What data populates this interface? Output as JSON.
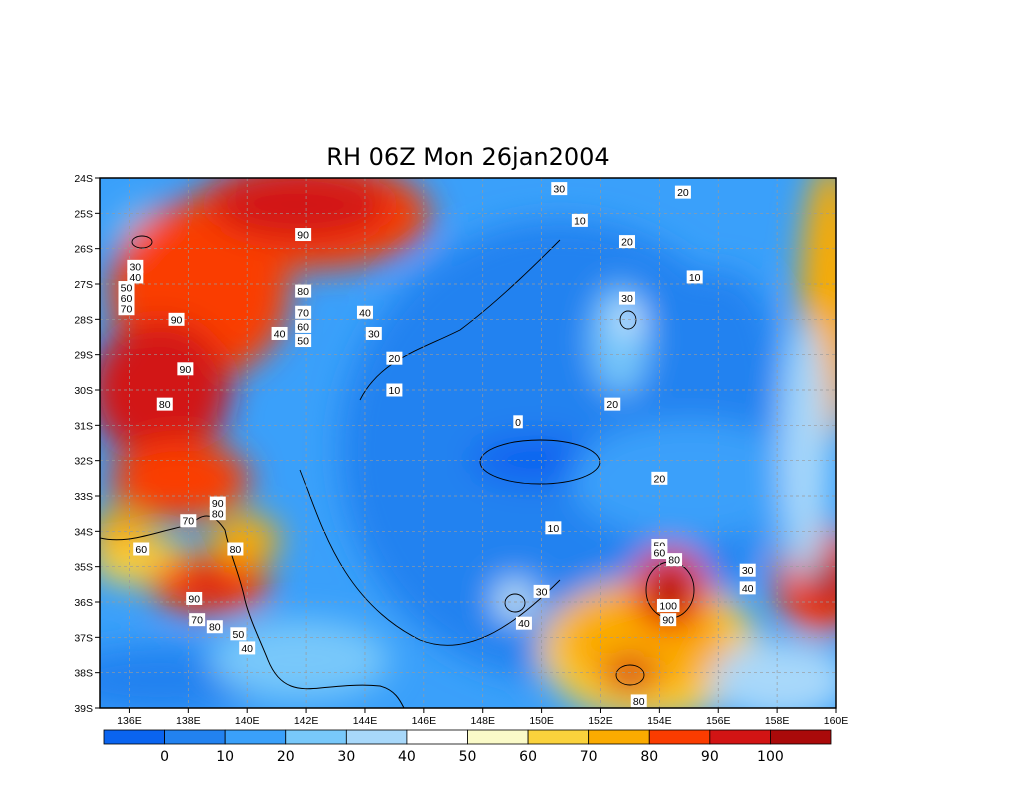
{
  "chart_data": {
    "type": "heatmap",
    "title": "RH 06Z Mon 26jan2004",
    "variable": "RH",
    "x_ticks": [
      "136E",
      "138E",
      "140E",
      "142E",
      "144E",
      "146E",
      "148E",
      "150E",
      "152E",
      "154E",
      "156E",
      "158E",
      "160E"
    ],
    "y_ticks": [
      "24S",
      "25S",
      "26S",
      "27S",
      "28S",
      "29S",
      "30S",
      "31S",
      "32S",
      "33S",
      "34S",
      "35S",
      "36S",
      "37S",
      "38S",
      "39S"
    ],
    "xlim": [
      135,
      160
    ],
    "ylim": [
      -39,
      -24
    ],
    "grid": true,
    "colorbar": {
      "labels": [
        "0",
        "10",
        "20",
        "30",
        "40",
        "50",
        "60",
        "70",
        "80",
        "90",
        "100"
      ],
      "colors": [
        "#0a64f0",
        "#2282f0",
        "#3aa0fa",
        "#78c8fa",
        "#a8d8fa",
        "#ffffff",
        "#fafac8",
        "#fad23c",
        "#fbab00",
        "#fa3c00",
        "#d21414",
        "#aa0a0a"
      ]
    },
    "contour_labels": [
      {
        "text": "30",
        "lon": 150.6,
        "lat": -24.3
      },
      {
        "text": "20",
        "lon": 154.8,
        "lat": -24.4
      },
      {
        "text": "10",
        "lon": 151.3,
        "lat": -25.2
      },
      {
        "text": "20",
        "lon": 152.9,
        "lat": -25.8
      },
      {
        "text": "10",
        "lon": 155.2,
        "lat": -26.8
      },
      {
        "text": "30",
        "lon": 152.9,
        "lat": -27.4
      },
      {
        "text": "90",
        "lon": 141.9,
        "lat": -25.6
      },
      {
        "text": "80",
        "lon": 141.9,
        "lat": -27.2
      },
      {
        "text": "70",
        "lon": 141.9,
        "lat": -27.8
      },
      {
        "text": "60",
        "lon": 141.9,
        "lat": -28.2
      },
      {
        "text": "50",
        "lon": 141.9,
        "lat": -28.6
      },
      {
        "text": "40",
        "lon": 141.1,
        "lat": -28.4
      },
      {
        "text": "40",
        "lon": 144.0,
        "lat": -27.8
      },
      {
        "text": "30",
        "lon": 144.3,
        "lat": -28.4
      },
      {
        "text": "20",
        "lon": 145.0,
        "lat": -29.1
      },
      {
        "text": "10",
        "lon": 145.0,
        "lat": -30.0
      },
      {
        "text": "30",
        "lon": 136.2,
        "lat": -26.5
      },
      {
        "text": "40",
        "lon": 136.2,
        "lat": -26.8
      },
      {
        "text": "50",
        "lon": 135.9,
        "lat": -27.1
      },
      {
        "text": "60",
        "lon": 135.9,
        "lat": -27.4
      },
      {
        "text": "70",
        "lon": 135.9,
        "lat": -27.7
      },
      {
        "text": "90",
        "lon": 137.6,
        "lat": -28.0
      },
      {
        "text": "90",
        "lon": 137.9,
        "lat": -29.4
      },
      {
        "text": "80",
        "lon": 137.2,
        "lat": -30.4
      },
      {
        "text": "0",
        "lon": 149.2,
        "lat": -30.9
      },
      {
        "text": "20",
        "lon": 152.4,
        "lat": -30.4
      },
      {
        "text": "20",
        "lon": 154.0,
        "lat": -32.5
      },
      {
        "text": "10",
        "lon": 150.4,
        "lat": -33.9
      },
      {
        "text": "90",
        "lon": 139.0,
        "lat": -33.2
      },
      {
        "text": "80",
        "lon": 139.0,
        "lat": -33.5
      },
      {
        "text": "70",
        "lon": 138.0,
        "lat": -33.7
      },
      {
        "text": "60",
        "lon": 136.4,
        "lat": -34.5
      },
      {
        "text": "80",
        "lon": 139.6,
        "lat": -34.5
      },
      {
        "text": "90",
        "lon": 138.2,
        "lat": -35.9
      },
      {
        "text": "70",
        "lon": 138.3,
        "lat": -36.5
      },
      {
        "text": "80",
        "lon": 138.9,
        "lat": -36.7
      },
      {
        "text": "50",
        "lon": 139.7,
        "lat": -36.9
      },
      {
        "text": "40",
        "lon": 140.0,
        "lat": -37.3
      },
      {
        "text": "30",
        "lon": 150.0,
        "lat": -35.7
      },
      {
        "text": "40",
        "lon": 149.4,
        "lat": -36.6
      },
      {
        "text": "50",
        "lon": 154.0,
        "lat": -34.4
      },
      {
        "text": "60",
        "lon": 154.0,
        "lat": -34.6
      },
      {
        "text": "80",
        "lon": 154.5,
        "lat": -34.8
      },
      {
        "text": "100",
        "lon": 154.3,
        "lat": -36.1
      },
      {
        "text": "90",
        "lon": 154.3,
        "lat": -36.5
      },
      {
        "text": "30",
        "lon": 157.0,
        "lat": -35.1
      },
      {
        "text": "40",
        "lon": 157.0,
        "lat": -35.6
      },
      {
        "text": "80",
        "lon": 153.3,
        "lat": -38.8
      }
    ]
  }
}
